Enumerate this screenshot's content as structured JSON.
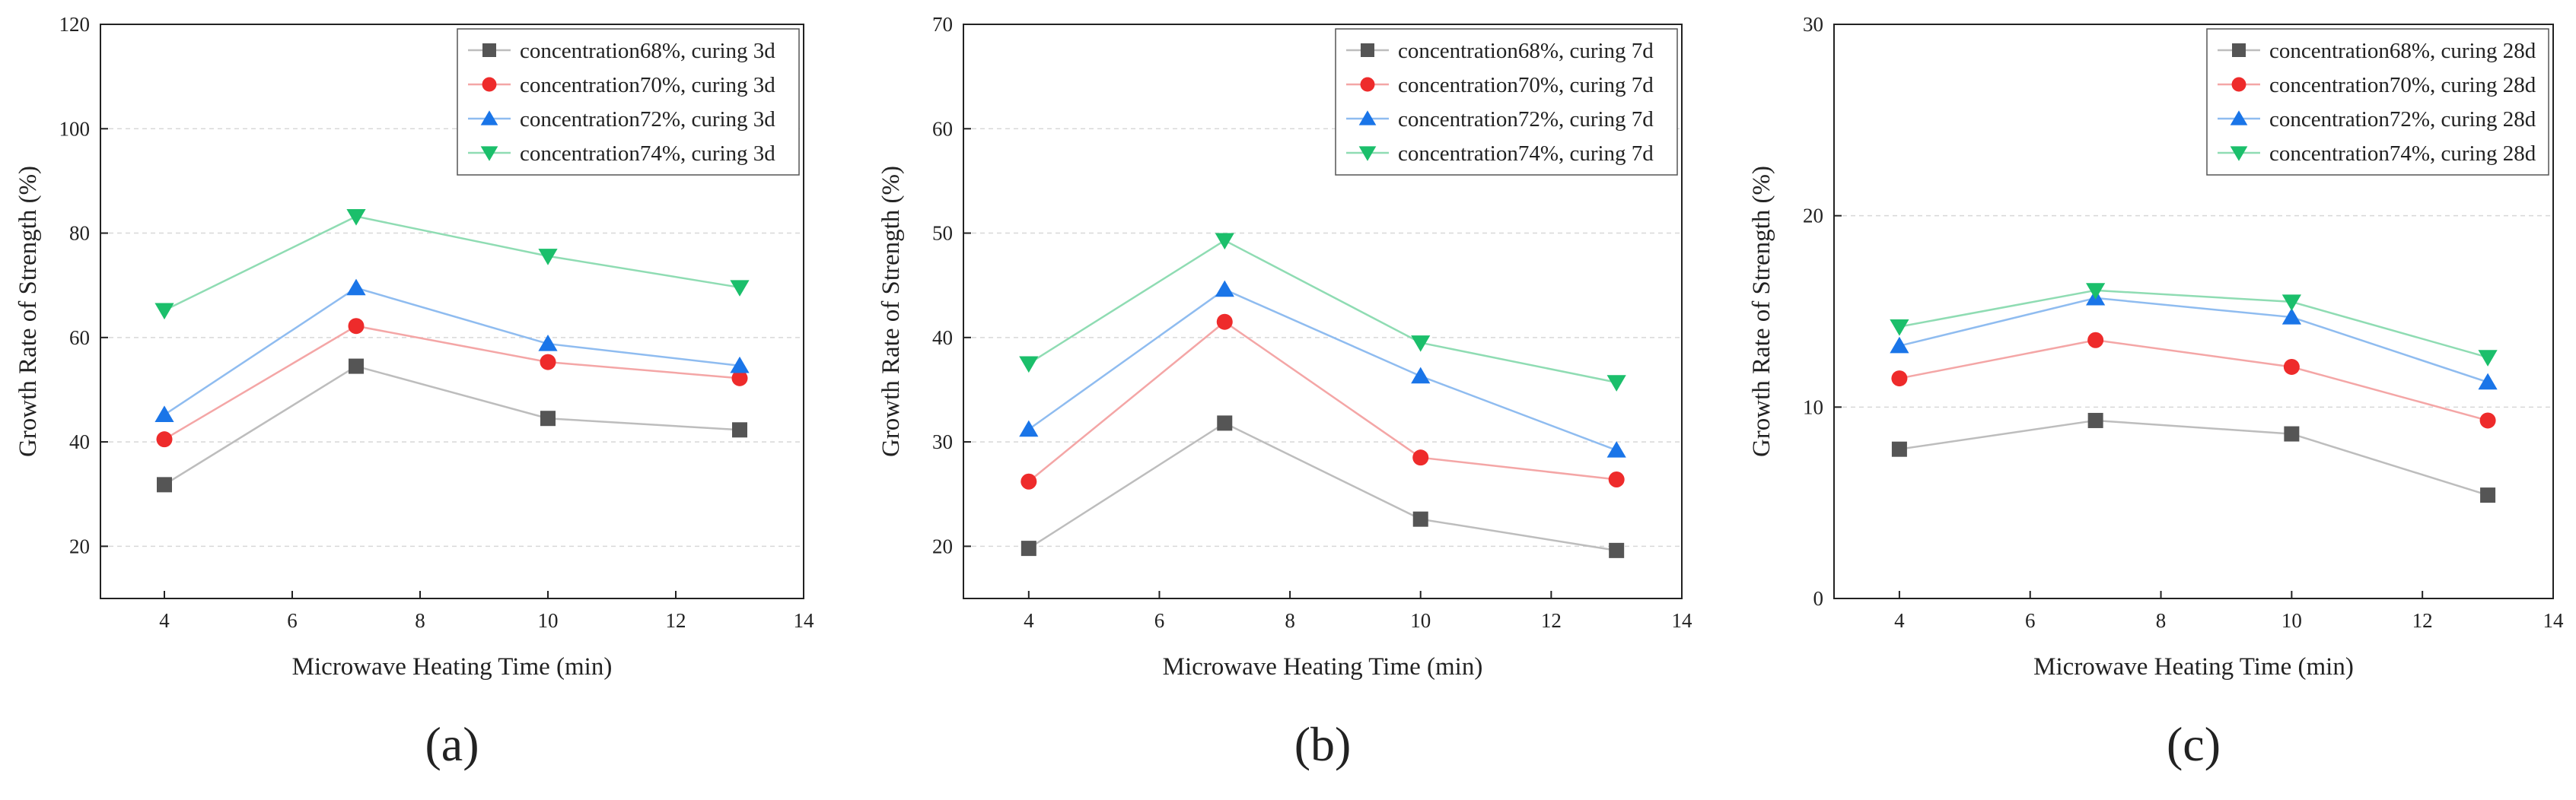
{
  "figure": {
    "series_styles": [
      {
        "color": "#555555",
        "line": "#bdbdbd",
        "marker": "square"
      },
      {
        "color": "#ee2b2b",
        "line": "#f4a6a6",
        "marker": "circle"
      },
      {
        "color": "#1a75e8",
        "line": "#8fbcf0",
        "marker": "triangle-up"
      },
      {
        "color": "#1bbf6b",
        "line": "#8fdcb3",
        "marker": "triangle-down"
      }
    ]
  },
  "chart_data": [
    {
      "type": "line",
      "panel_label": "(a)",
      "xlabel": "Microwave Heating Time (min)",
      "ylabel": "Growth Rate of Strength (%)",
      "xlim": [
        3,
        14
      ],
      "ylim": [
        10,
        120
      ],
      "xticks": [
        4,
        6,
        8,
        10,
        12,
        14
      ],
      "yticks": [
        20,
        40,
        60,
        80,
        100,
        120
      ],
      "x": [
        4,
        7,
        10,
        13
      ],
      "series": [
        {
          "name": "concentration68%, curing 3d",
          "values": [
            31.8,
            54.5,
            44.5,
            42.3
          ]
        },
        {
          "name": "concentration70%, curing 3d",
          "values": [
            40.5,
            62.2,
            55.3,
            52.2
          ]
        },
        {
          "name": "concentration72%, curing 3d",
          "values": [
            45.2,
            69.5,
            58.8,
            54.6
          ]
        },
        {
          "name": "concentration74%, curing 3d",
          "values": [
            65.2,
            83.2,
            75.6,
            69.6
          ]
        }
      ]
    },
    {
      "type": "line",
      "panel_label": "(b)",
      "xlabel": "Microwave Heating Time (min)",
      "ylabel": "Growth Rate of Strength (%)",
      "xlim": [
        3,
        14
      ],
      "ylim": [
        15,
        70
      ],
      "xticks": [
        4,
        6,
        8,
        10,
        12,
        14
      ],
      "yticks": [
        20,
        30,
        40,
        50,
        60,
        70
      ],
      "x": [
        4,
        7,
        10,
        13
      ],
      "series": [
        {
          "name": "concentration68%, curing 7d",
          "values": [
            19.8,
            31.8,
            22.6,
            19.6
          ]
        },
        {
          "name": "concentration70%, curing 7d",
          "values": [
            26.2,
            41.5,
            28.5,
            26.4
          ]
        },
        {
          "name": "concentration72%, curing 7d",
          "values": [
            31.2,
            44.6,
            36.3,
            29.2
          ]
        },
        {
          "name": "concentration74%, curing 7d",
          "values": [
            37.5,
            49.3,
            39.5,
            35.7
          ]
        }
      ]
    },
    {
      "type": "line",
      "panel_label": "(c)",
      "xlabel": "Microwave Heating Time (min)",
      "ylabel": "Growth Rate of Strength (%)",
      "xlim": [
        3,
        14
      ],
      "ylim": [
        0,
        30
      ],
      "xticks": [
        4,
        6,
        8,
        10,
        12,
        14
      ],
      "yticks": [
        0,
        10,
        20,
        30
      ],
      "x": [
        4,
        7,
        10,
        13
      ],
      "series": [
        {
          "name": "concentration68%, curing 28d",
          "values": [
            7.8,
            9.3,
            8.6,
            5.4
          ]
        },
        {
          "name": "concentration70%, curing 28d",
          "values": [
            11.5,
            13.5,
            12.1,
            9.3
          ]
        },
        {
          "name": "concentration72%, curing 28d",
          "values": [
            13.2,
            15.7,
            14.7,
            11.3
          ]
        },
        {
          "name": "concentration74%, curing 28d",
          "values": [
            14.2,
            16.1,
            15.5,
            12.6
          ]
        }
      ]
    }
  ]
}
